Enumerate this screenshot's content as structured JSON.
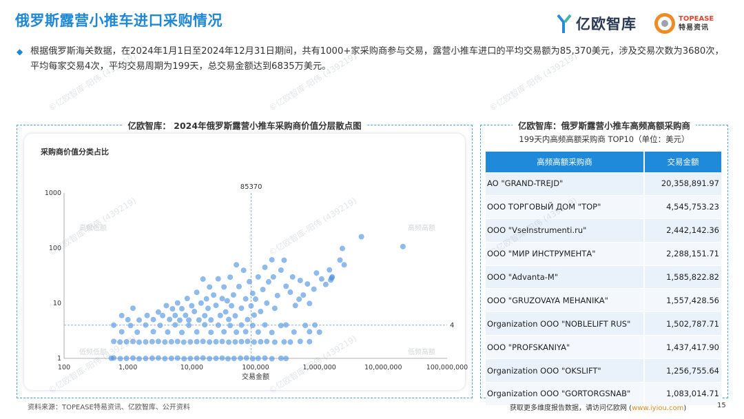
{
  "page": {
    "title": "俄罗斯露营小推车进口采购情况",
    "summary": "根据俄罗斯海关数据，在2024年1月1日至2024年12月31日期间，共有1000+家采购商参与交易，露营小推车进口的平均交易额为85,370美元，涉及交易次数为3680次，平均每家交易4次，平均交易周期为199天，总交易金额达到6835万美元。",
    "logo_yiou": "亿欧智库",
    "logo_topease_en": "TOPEASE",
    "logo_topease_cn": "特易资讯",
    "watermark": "©亿欧智库-阳伟 (439219)",
    "source": "资料来源：TOPEASE特易资讯、亿欧智库、公开资料",
    "footer_text": "获取更多维度报告数据，请访问亿欧网 (",
    "footer_link": "www.iyiou.com",
    "footer_close": ")",
    "page_number": "15"
  },
  "left_panel": {
    "title": "亿欧智库： 2024年俄罗斯露营小推车采购商价值分层散点图",
    "subtitle": "采购商价值分类占比"
  },
  "right_panel": {
    "title": "亿欧智库：俄罗斯露营小推车高频高额采购商",
    "subtitle": "199天内高频高额采购商 TOP10（单位：美元）",
    "headers": [
      "高频高额采购商",
      "交易金额"
    ],
    "rows": [
      {
        "name": "AO \"GRAND-TREJD\"",
        "amount": "20,358,891.97"
      },
      {
        "name": "OOO ТОРГОВЫЙ ДОМ \"ТОР\"",
        "amount": "4,545,753.23"
      },
      {
        "name": "OOO \"VseInstrumenti.ru\"",
        "amount": "2,442,142.36"
      },
      {
        "name": "OOO \"МИР ИНСТРУМЕНТА\"",
        "amount": "2,288,151.71"
      },
      {
        "name": "OOO \"Advanta-M\"",
        "amount": "1,585,822.82"
      },
      {
        "name": "OOO \"GRUZOVAYA MEHANIKA\"",
        "amount": "1,557,428.56"
      },
      {
        "name": "Organization OOO \"NOBLELIFT RUS\"",
        "amount": "1,502,787.71"
      },
      {
        "name": "OOO \"PROFSKANIYA\"",
        "amount": "1,437,417.90"
      },
      {
        "name": "Organization OOO \"OKSLIFT\"",
        "amount": "1,256,755.64"
      },
      {
        "name": "Organization OOO \"GORTORGSNAB\"",
        "amount": "1,083,014.71"
      }
    ]
  },
  "chart_data": {
    "type": "scatter",
    "xlabel": "交易金额",
    "ylabel": "",
    "x_scale": "log",
    "y_scale": "log",
    "xlim": [
      100,
      100000000
    ],
    "ylim": [
      1,
      1000
    ],
    "x_ticks": [
      100,
      1000,
      10000,
      100000,
      1000000,
      10000000,
      100000000
    ],
    "x_tick_labels": [
      "100",
      "1,000",
      "10,000",
      "100,000",
      "1,000,000",
      "10,000,000",
      "100,000,000"
    ],
    "y_ticks": [
      1,
      10,
      100,
      1000
    ],
    "y_tick_labels": [
      "1",
      "10",
      "100",
      "1000"
    ],
    "ref_x": 85370,
    "ref_x_label": "85370",
    "ref_y": 4,
    "ref_y_label": "4",
    "grid": false,
    "quadrant_labels": {
      "top_left": "高频低额",
      "top_right": "高频高额",
      "bottom_left": "低频低额",
      "bottom_right": "低频高额"
    },
    "point_color": "#4a8fe0",
    "points": [
      [
        20358892,
        105
      ],
      [
        4545753,
        160
      ],
      [
        2442142,
        50
      ],
      [
        2288152,
        100
      ],
      [
        2100000,
        60
      ],
      [
        1585823,
        30
      ],
      [
        1557429,
        29
      ],
      [
        1502788,
        26
      ],
      [
        1437418,
        40
      ],
      [
        1256756,
        22
      ],
      [
        1083015,
        28
      ],
      [
        900000,
        35
      ],
      [
        820000,
        18
      ],
      [
        700000,
        10
      ],
      [
        650000,
        22
      ],
      [
        560000,
        14
      ],
      [
        500000,
        26
      ],
      [
        480000,
        12
      ],
      [
        420000,
        9
      ],
      [
        380000,
        30
      ],
      [
        350000,
        16
      ],
      [
        300000,
        20
      ],
      [
        280000,
        60
      ],
      [
        250000,
        40
      ],
      [
        220000,
        14
      ],
      [
        200000,
        8
      ],
      [
        190000,
        30
      ],
      [
        180000,
        62
      ],
      [
        160000,
        24
      ],
      [
        150000,
        10
      ],
      [
        140000,
        45
      ],
      [
        130000,
        18
      ],
      [
        120000,
        7
      ],
      [
        110000,
        30
      ],
      [
        100000,
        12
      ],
      [
        95000,
        6
      ],
      [
        90000,
        15
      ],
      [
        85000,
        9
      ],
      [
        80000,
        25
      ],
      [
        75000,
        5
      ],
      [
        70000,
        12
      ],
      [
        65000,
        40
      ],
      [
        60000,
        8
      ],
      [
        55000,
        20
      ],
      [
        50000,
        50
      ],
      [
        48000,
        6
      ],
      [
        45000,
        14
      ],
      [
        42000,
        9
      ],
      [
        40000,
        30
      ],
      [
        38000,
        5
      ],
      [
        36000,
        11
      ],
      [
        34000,
        7
      ],
      [
        32000,
        20
      ],
      [
        30000,
        12
      ],
      [
        28000,
        6
      ],
      [
        26000,
        28
      ],
      [
        24000,
        9
      ],
      [
        22000,
        14
      ],
      [
        20000,
        5
      ],
      [
        19000,
        20
      ],
      [
        18000,
        8
      ],
      [
        17000,
        12
      ],
      [
        16000,
        6
      ],
      [
        15000,
        27
      ],
      [
        14000,
        10
      ],
      [
        13000,
        5
      ],
      [
        12000,
        16
      ],
      [
        11000,
        7
      ],
      [
        10000,
        9
      ],
      [
        9000,
        5
      ],
      [
        8500,
        12
      ],
      [
        8000,
        6
      ],
      [
        7000,
        8
      ],
      [
        6500,
        5
      ],
      [
        6000,
        10
      ],
      [
        5500,
        6
      ],
      [
        5000,
        8
      ],
      [
        4500,
        5
      ],
      [
        4000,
        9
      ],
      [
        3500,
        6
      ],
      [
        3000,
        7
      ],
      [
        2500,
        5
      ],
      [
        2000,
        6
      ],
      [
        1500,
        5
      ],
      [
        1200,
        8
      ],
      [
        1000,
        5
      ],
      [
        800,
        6
      ],
      [
        250000,
        4
      ],
      [
        300000,
        4
      ],
      [
        400000,
        3
      ],
      [
        600000,
        4
      ],
      [
        700000,
        3
      ],
      [
        850000,
        4
      ],
      [
        1000000,
        3
      ],
      [
        180000,
        3
      ],
      [
        140000,
        4
      ],
      [
        110000,
        3
      ],
      [
        90000,
        4
      ],
      [
        70000,
        3
      ],
      [
        60000,
        4
      ],
      [
        50000,
        3
      ],
      [
        40000,
        4
      ],
      [
        32000,
        3
      ],
      [
        26000,
        4
      ],
      [
        20000,
        3
      ],
      [
        16000,
        4
      ],
      [
        12000,
        3
      ],
      [
        9000,
        4
      ],
      [
        7000,
        3
      ],
      [
        5500,
        4
      ],
      [
        4200,
        3
      ],
      [
        3200,
        4
      ],
      [
        2500,
        3
      ],
      [
        1900,
        4
      ],
      [
        1400,
        3
      ],
      [
        1100,
        4
      ],
      [
        800,
        3
      ],
      [
        600,
        4
      ],
      [
        350000,
        2
      ],
      [
        500000,
        2
      ],
      [
        700000,
        2
      ],
      [
        280000,
        2
      ],
      [
        200000,
        2
      ],
      [
        150000,
        2
      ],
      [
        120000,
        2
      ],
      [
        95000,
        2
      ],
      [
        75000,
        2
      ],
      [
        60000,
        2
      ],
      [
        48000,
        2
      ],
      [
        38000,
        2
      ],
      [
        30000,
        2
      ],
      [
        24000,
        2
      ],
      [
        19000,
        2
      ],
      [
        15000,
        2
      ],
      [
        12000,
        2
      ],
      [
        9500,
        2
      ],
      [
        7500,
        2
      ],
      [
        6000,
        2
      ],
      [
        4800,
        2
      ],
      [
        3800,
        2
      ],
      [
        3000,
        2
      ],
      [
        2400,
        2
      ],
      [
        1900,
        2
      ],
      [
        1500,
        2
      ],
      [
        1200,
        2
      ],
      [
        950,
        2
      ],
      [
        750,
        2
      ],
      [
        600,
        2
      ],
      [
        250000,
        1
      ],
      [
        300000,
        1
      ],
      [
        180000,
        1
      ],
      [
        140000,
        1
      ],
      [
        110000,
        1
      ],
      [
        90000,
        1
      ],
      [
        72000,
        1
      ],
      [
        58000,
        1
      ],
      [
        46000,
        1
      ],
      [
        37000,
        1
      ],
      [
        30000,
        1
      ],
      [
        24000,
        1
      ],
      [
        19000,
        1
      ],
      [
        15000,
        1
      ],
      [
        12000,
        1
      ],
      [
        9500,
        1
      ],
      [
        7600,
        1
      ],
      [
        6000,
        1
      ],
      [
        4800,
        1
      ],
      [
        3800,
        1
      ],
      [
        3000,
        1
      ],
      [
        2400,
        1
      ],
      [
        1900,
        1
      ],
      [
        1500,
        1
      ],
      [
        1200,
        1
      ],
      [
        950,
        1
      ],
      [
        760,
        1
      ],
      [
        600,
        1
      ],
      [
        550,
        1
      ]
    ]
  }
}
